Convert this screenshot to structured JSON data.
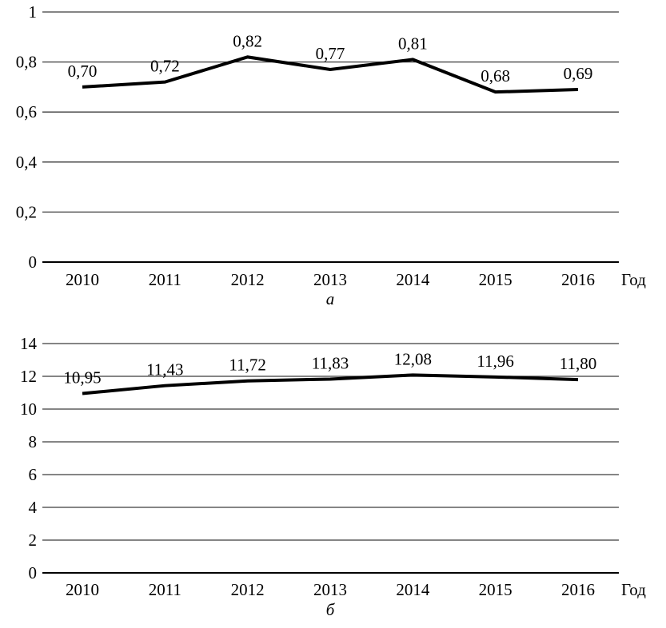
{
  "figure": {
    "background_color": "#ffffff",
    "text_color": "#000000",
    "grid_color": "#3c3c3c",
    "line_color": "#000000"
  },
  "chart_data": [
    {
      "id": "a",
      "type": "line",
      "caption": "а",
      "xlabel": "Год",
      "ylabel": "",
      "title": "",
      "categories": [
        "2010",
        "2011",
        "2012",
        "2013",
        "2014",
        "2015",
        "2016"
      ],
      "values": [
        0.7,
        0.72,
        0.82,
        0.77,
        0.81,
        0.68,
        0.69
      ],
      "point_labels": [
        "0,70",
        "0,72",
        "0,82",
        "0,77",
        "0,81",
        "0,68",
        "0,69"
      ],
      "y_ticks": [
        0,
        0.2,
        0.4,
        0.6,
        0.8,
        1
      ],
      "y_tick_labels": [
        "0",
        "0,2",
        "0,4",
        "0,6",
        "0,8",
        "1"
      ],
      "ylim": [
        0,
        1
      ],
      "grid": true,
      "legend": false
    },
    {
      "id": "b",
      "type": "line",
      "caption": "б",
      "xlabel": "Год",
      "ylabel": "",
      "title": "",
      "categories": [
        "2010",
        "2011",
        "2012",
        "2013",
        "2014",
        "2015",
        "2016"
      ],
      "values": [
        10.95,
        11.43,
        11.72,
        11.83,
        12.08,
        11.96,
        11.8
      ],
      "point_labels": [
        "10,95",
        "11,43",
        "11,72",
        "11,83",
        "12,08",
        "11,96",
        "11,80"
      ],
      "y_ticks": [
        0,
        2,
        4,
        6,
        8,
        10,
        12,
        14
      ],
      "y_tick_labels": [
        "0",
        "2",
        "4",
        "6",
        "8",
        "10",
        "12",
        "14"
      ],
      "ylim": [
        0,
        14
      ],
      "grid": true,
      "legend": false
    }
  ]
}
